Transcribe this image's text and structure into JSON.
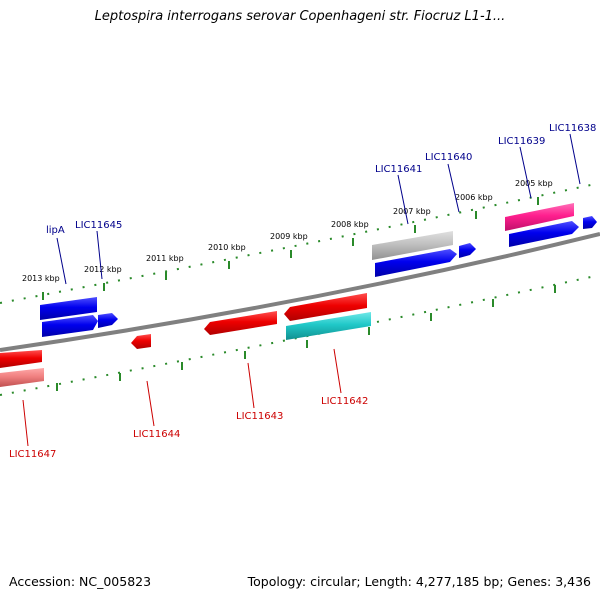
{
  "title": "Leptospira interrogans serovar Copenhageni str. Fiocruz L1-1...",
  "footer": {
    "accession": "Accession: NC_005823",
    "stats": "Topology: circular; Length: 4,277,185 bp; Genes: 3,436"
  },
  "colors": {
    "backbone": "#808080",
    "ruler_ticks": "#2a8a2a",
    "forward_gene": "#0000ee",
    "reverse_gene": "#ee0000",
    "forward_label": "#00008b",
    "reverse_label": "#cc0000",
    "pseudo_gene": "#c0c0c0",
    "highlight_gene": "#ff1f8e",
    "rna_gene": "#20c8c8",
    "faded_reverse": "#f08080"
  },
  "ruler": {
    "unit": "kbp",
    "forward_ticks": [
      "2013 kbp",
      "2012 kbp",
      "2011 kbp",
      "2010 kbp",
      "2009 kbp",
      "2008 kbp",
      "2007 kbp",
      "2006 kbp",
      "2005 kbp"
    ]
  },
  "genes": {
    "forward": [
      "lipA",
      "LIC11645",
      "LIC11641",
      "LIC11640",
      "LIC11639",
      "LIC11638"
    ],
    "reverse": [
      "LIC11647",
      "LIC11644",
      "LIC11643",
      "LIC11642"
    ]
  }
}
